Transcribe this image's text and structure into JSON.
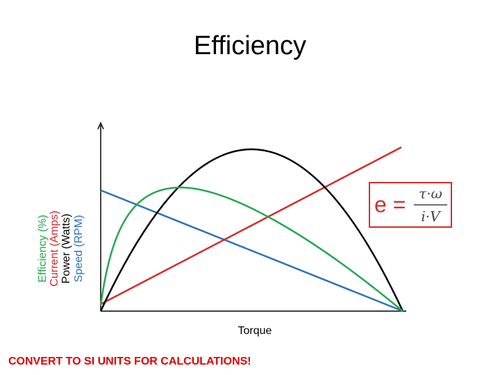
{
  "header": {
    "title": "Efficiency"
  },
  "axis_labels": {
    "y": [
      "Efficiency (%)",
      "Current (Amps)",
      "Power (Watts)",
      "Speed (RPM)"
    ],
    "x": "Torque"
  },
  "formula": {
    "lhs": "e =",
    "numerator": "τ·ω",
    "denominator": "i·V"
  },
  "note": "CONVERT TO SI UNITS FOR CALCULATIONS!"
}
